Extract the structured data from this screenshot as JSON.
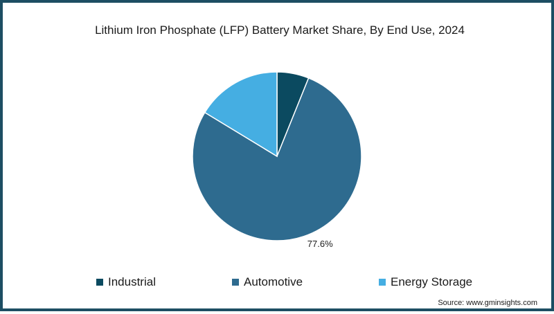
{
  "chart_data": {
    "type": "pie",
    "title": "Lithium Iron Phosphate (LFP) Battery Market Share, By End Use, 2024",
    "categories": [
      "Industrial",
      "Automotive",
      "Energy Storage"
    ],
    "values": [
      6.1,
      77.6,
      16.3
    ],
    "colors": [
      "#0b4a60",
      "#2e6b8f",
      "#45aee2"
    ],
    "data_labels": [
      "",
      "77.6%",
      ""
    ],
    "legend_position": "bottom"
  },
  "source": "Source: www.gminsights.com"
}
